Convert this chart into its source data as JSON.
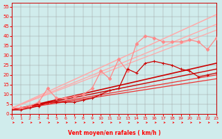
{
  "xlabel": "Vent moyen/en rafales ( km/h )",
  "xlim": [
    0,
    23
  ],
  "ylim": [
    0,
    57
  ],
  "yticks": [
    0,
    5,
    10,
    15,
    20,
    25,
    30,
    35,
    40,
    45,
    50,
    55
  ],
  "xticks": [
    0,
    1,
    2,
    3,
    4,
    5,
    6,
    7,
    8,
    9,
    10,
    11,
    12,
    13,
    14,
    15,
    16,
    17,
    18,
    19,
    20,
    21,
    22,
    23
  ],
  "background_color": "#d0ecec",
  "lines_pink_marker": {
    "x": [
      0,
      1,
      2,
      3,
      4,
      5,
      6,
      7,
      8,
      9,
      10,
      11,
      12,
      13,
      14,
      15,
      16,
      17,
      18,
      19,
      20,
      21,
      22,
      23
    ],
    "y": [
      3,
      3,
      4,
      6,
      13,
      8,
      8,
      9,
      10,
      13,
      22,
      18,
      28,
      22,
      36,
      40,
      39,
      37,
      37,
      37,
      38,
      37,
      33,
      39
    ],
    "color": "#ff8888",
    "lw": 0.9,
    "marker": "D",
    "ms": 2.5
  },
  "lines_pink_straight": [
    {
      "x": [
        0,
        23
      ],
      "y": [
        3,
        51
      ],
      "color": "#ffaaaa",
      "lw": 1.1
    },
    {
      "x": [
        0,
        23
      ],
      "y": [
        3,
        46
      ],
      "color": "#ffaaaa",
      "lw": 1.0
    },
    {
      "x": [
        0,
        23
      ],
      "y": [
        3,
        43
      ],
      "color": "#ffaaaa",
      "lw": 0.9
    }
  ],
  "lines_red_marker": {
    "x": [
      0,
      1,
      2,
      3,
      4,
      5,
      6,
      7,
      8,
      9,
      10,
      11,
      12,
      13,
      14,
      15,
      16,
      17,
      18,
      19,
      20,
      21,
      22,
      23
    ],
    "y": [
      2,
      2,
      3,
      4,
      6,
      6,
      6,
      6,
      7,
      8,
      10,
      12,
      13,
      23,
      21,
      26,
      27,
      26,
      25,
      23,
      22,
      19,
      20,
      21
    ],
    "color": "#cc0000",
    "lw": 0.9,
    "marker": "+",
    "ms": 3.5
  },
  "lines_red_straight": [
    {
      "x": [
        0,
        23
      ],
      "y": [
        2,
        26
      ],
      "color": "#cc0000",
      "lw": 1.2
    },
    {
      "x": [
        0,
        23
      ],
      "y": [
        2,
        23
      ],
      "color": "#cc0000",
      "lw": 1.0
    },
    {
      "x": [
        0,
        23
      ],
      "y": [
        2,
        20
      ],
      "color": "#ee3333",
      "lw": 0.9
    },
    {
      "x": [
        0,
        23
      ],
      "y": [
        2,
        18
      ],
      "color": "#ee3333",
      "lw": 0.9
    }
  ],
  "wind_arrows_x": [
    0,
    1,
    2,
    3,
    4,
    5,
    6,
    7,
    8,
    9,
    10,
    11,
    12,
    13,
    14,
    15,
    16,
    17,
    18,
    19,
    20,
    21,
    22,
    23
  ]
}
